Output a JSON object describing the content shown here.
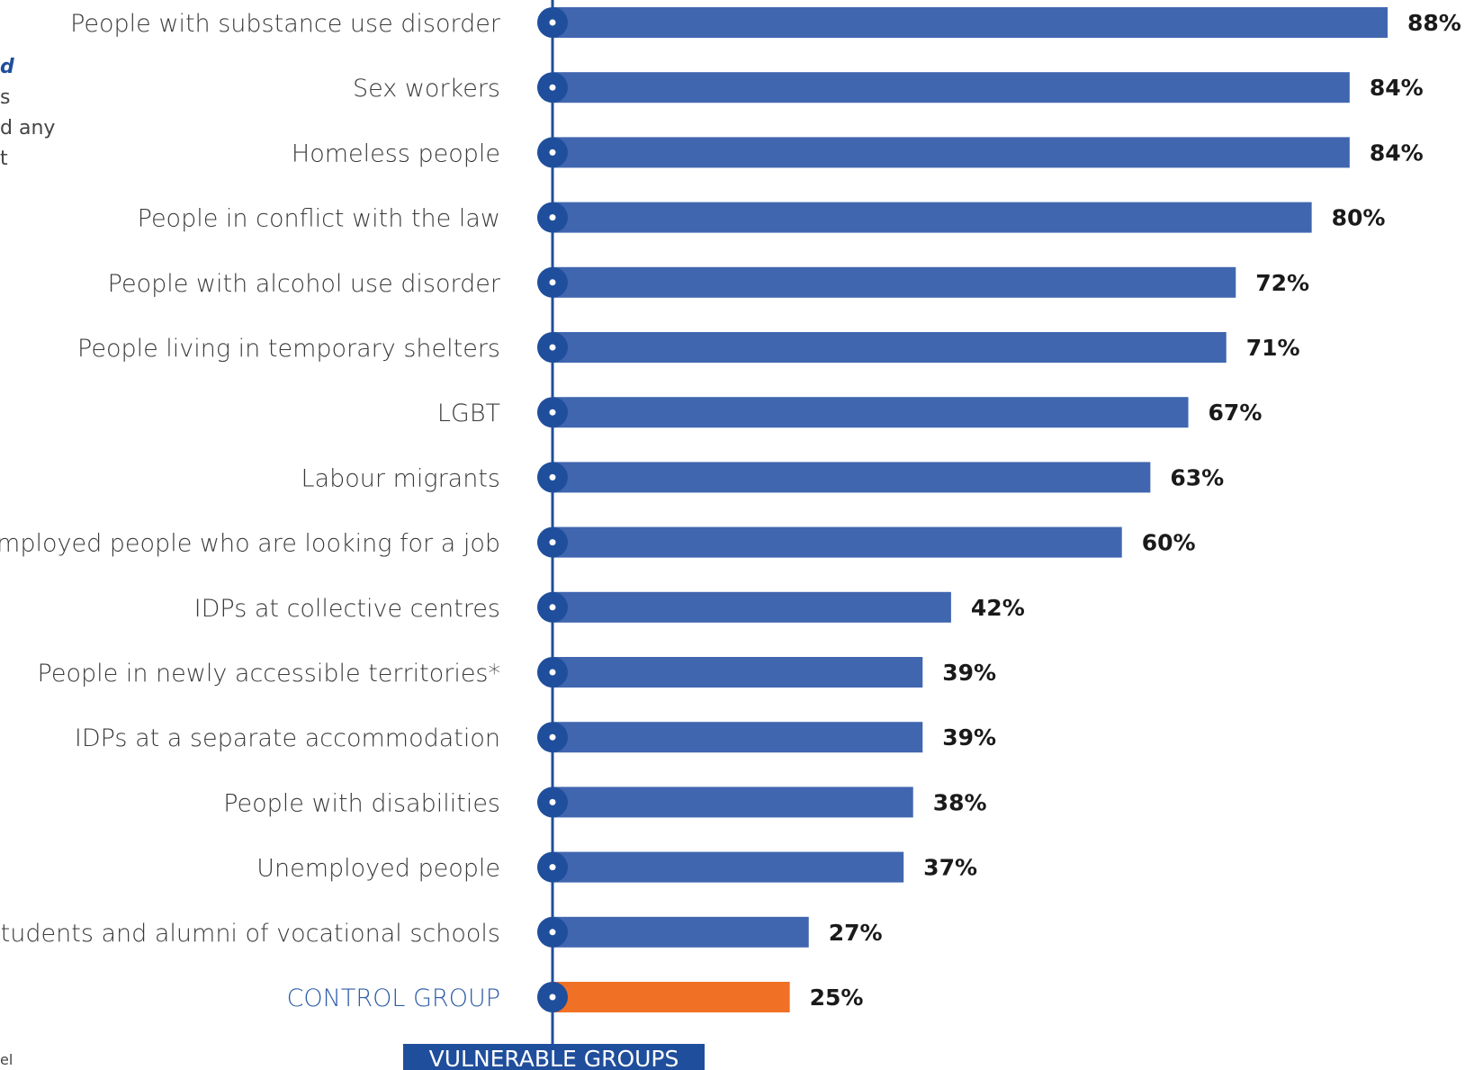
{
  "side_text": {
    "line1": "d",
    "line2": "s",
    "line3": "d any",
    "line4": "t",
    "footnote": "el"
  },
  "colors": {
    "bar": "#4166b0",
    "control_bar": "#f07025",
    "axis": "#1f4e9c",
    "control_label": "#2e5da8"
  },
  "chart_data": {
    "type": "bar",
    "orientation": "horizontal",
    "categories": [
      "People with substance use disorder",
      "Sex workers",
      "Homeless people",
      "People in conflict with the law",
      "People with alcohol use disorder",
      "People living in temporary shelters",
      "LGBT",
      "Labour migrants",
      "Employed people who are looking for a job",
      "IDPs at collective centres",
      "People in newly accessible territories*",
      "IDPs at a separate accommodation",
      "People with disabilities",
      "Unemployed people",
      "Students and alumni of vocational schools",
      "CONTROL GROUP"
    ],
    "values": [
      88,
      84,
      84,
      80,
      72,
      71,
      67,
      63,
      60,
      42,
      39,
      39,
      38,
      37,
      27,
      25
    ],
    "value_labels": [
      "88%",
      "84%",
      "84%",
      "80%",
      "72%",
      "71%",
      "67%",
      "63%",
      "60%",
      "42%",
      "39%",
      "39%",
      "38%",
      "37%",
      "27%",
      "25%"
    ],
    "highlight_index": 15,
    "xlim": [
      0,
      88
    ],
    "xlabel": "VULNERABLE GROUPS",
    "grid": false
  }
}
